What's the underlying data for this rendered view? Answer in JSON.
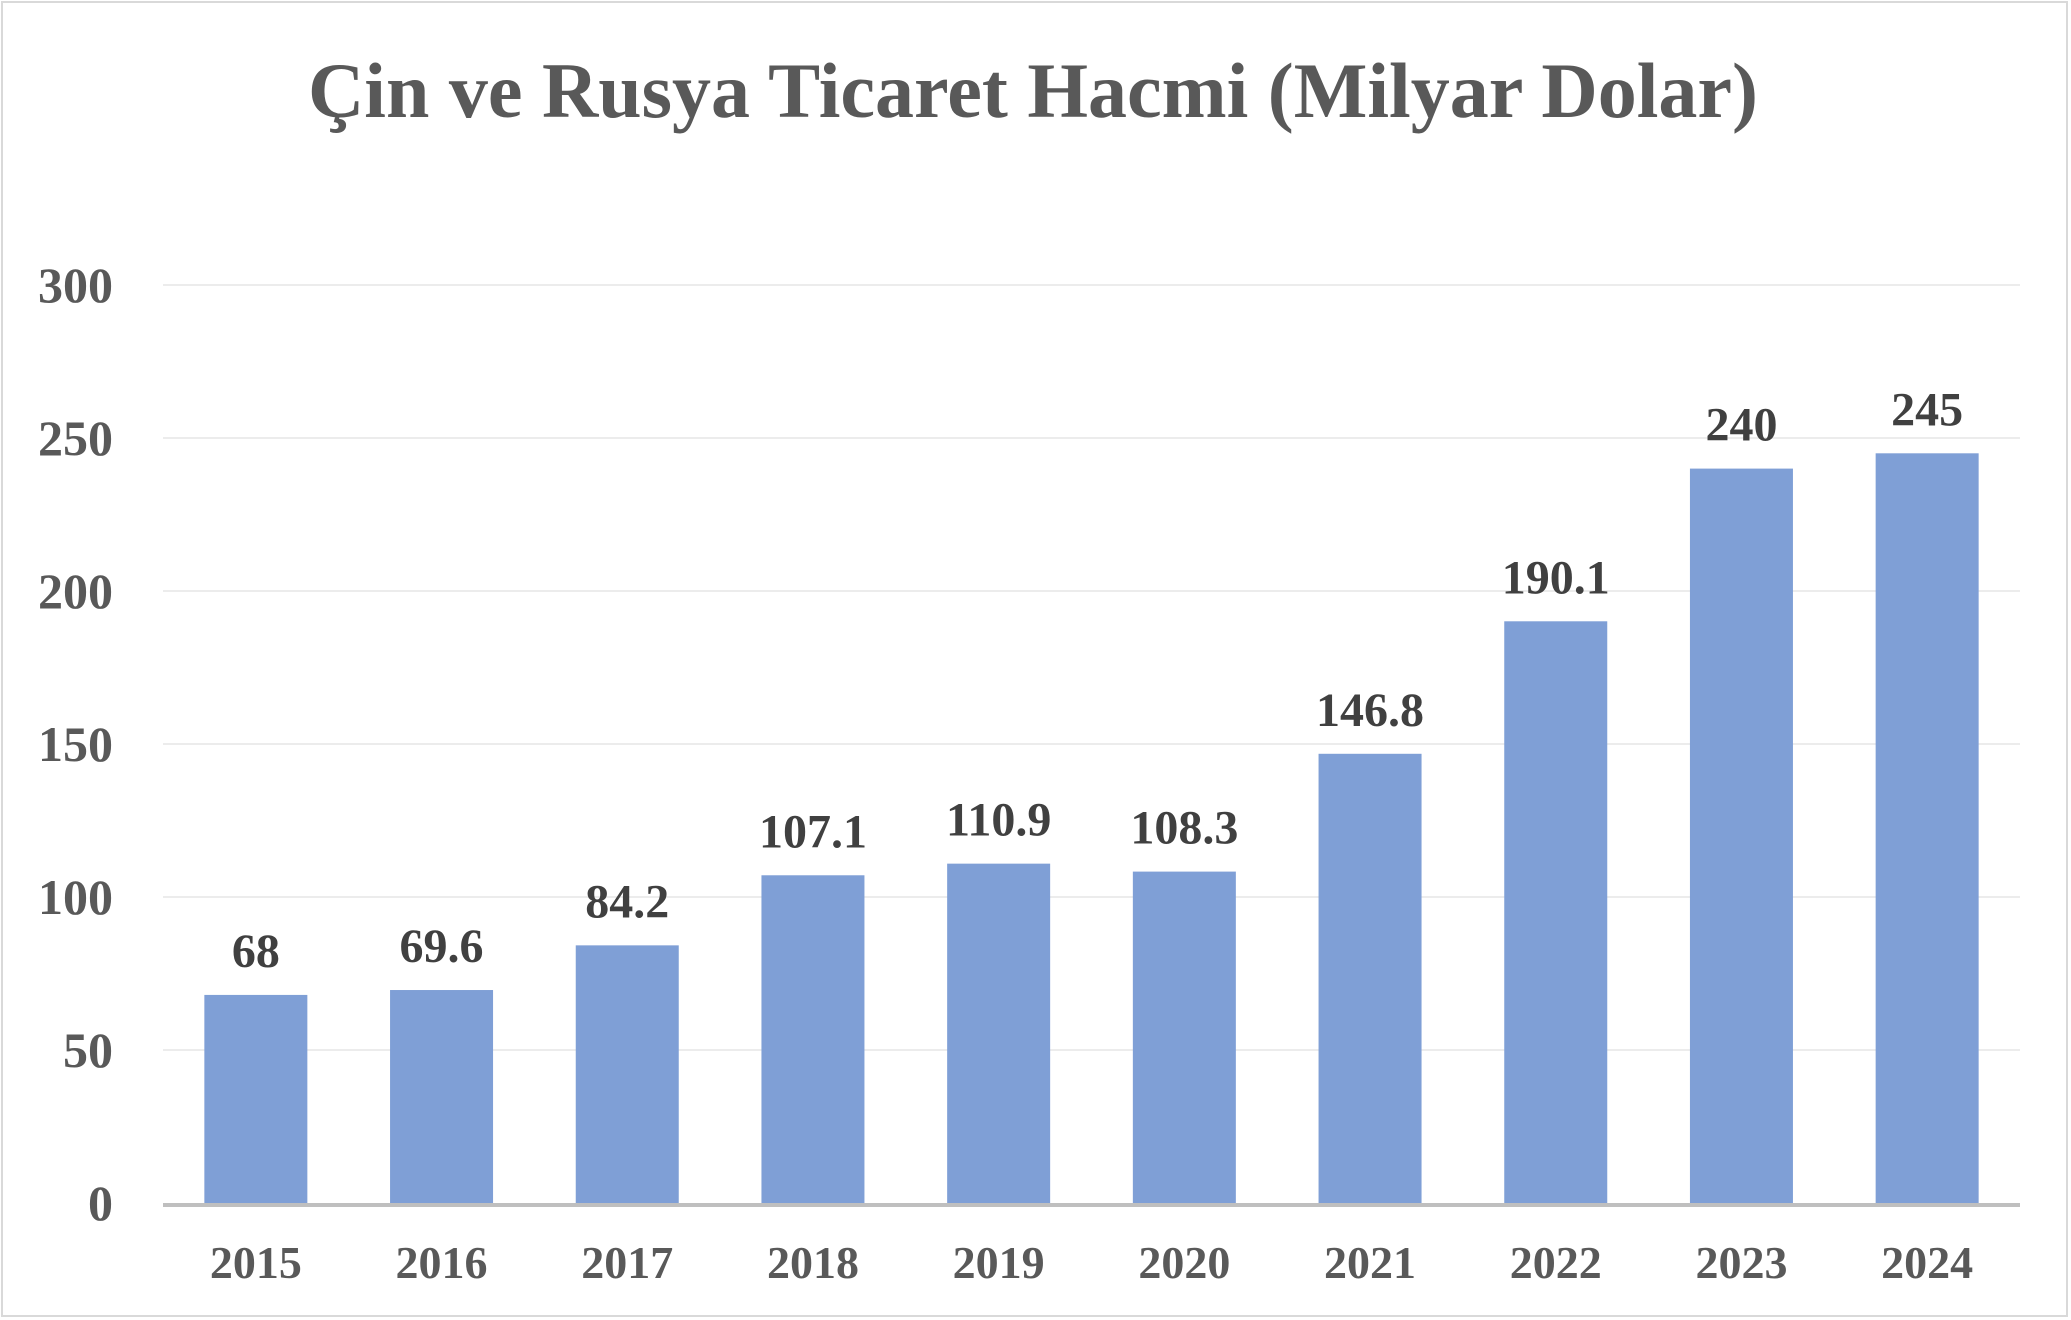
{
  "chart_data": {
    "type": "bar",
    "title": "Çin ve Rusya Ticaret Hacmi (Milyar Dolar)",
    "xlabel": "",
    "ylabel": "",
    "categories": [
      "2015",
      "2016",
      "2017",
      "2018",
      "2019",
      "2020",
      "2021",
      "2022",
      "2023",
      "2024"
    ],
    "values": [
      68,
      69.6,
      84.2,
      107.1,
      110.9,
      108.3,
      146.8,
      190.1,
      240,
      245
    ],
    "data_labels": [
      "68",
      "69.6",
      "84.2",
      "107.1",
      "110.9",
      "108.3",
      "146.8",
      "190.1",
      "240",
      "245"
    ],
    "ylim": [
      0,
      300
    ],
    "yticks": [
      "0",
      "50",
      "100",
      "150",
      "200",
      "250",
      "300"
    ],
    "grid": true,
    "legend": "none",
    "colors": {
      "bar": "#7f9fd6",
      "gridline": "#ececec",
      "axis": "#bfbfbf",
      "text": "#595959",
      "data_label": "#404040"
    }
  }
}
